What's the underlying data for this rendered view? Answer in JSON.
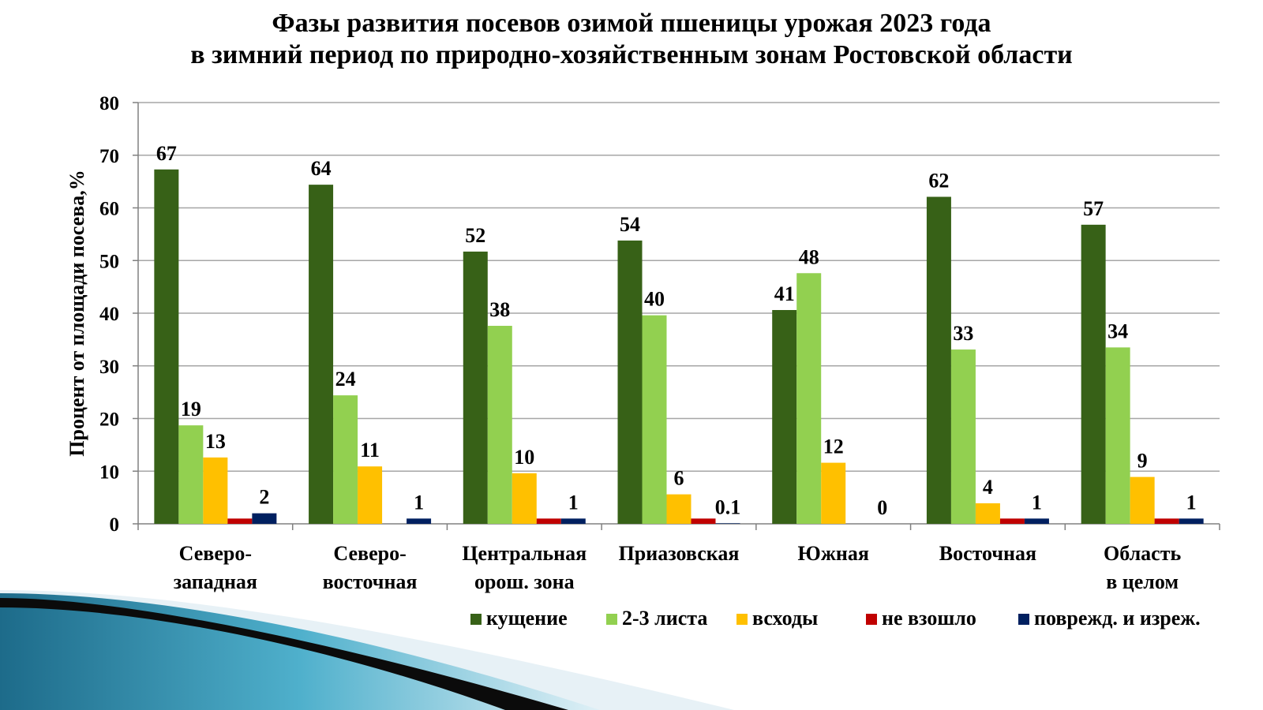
{
  "chart_data": {
    "type": "bar",
    "title_line1": "Фазы развития посевов озимой пшеницы урожая 2023 года",
    "title_line2": "в зимний период по природно-хозяйственным зонам Ростовской области",
    "ylabel": "Процент от площади посева,%",
    "xlabel": "",
    "ylim": [
      0,
      80
    ],
    "yticks": [
      0,
      10,
      20,
      30,
      40,
      50,
      60,
      70,
      80
    ],
    "grid": true,
    "legend_position": "bottom-right",
    "categories": [
      [
        "Северо-",
        "западная"
      ],
      [
        "Северо-",
        "восточная"
      ],
      [
        "Центральная",
        "орош. зона"
      ],
      [
        "Приазовская"
      ],
      [
        "Южная"
      ],
      [
        "Восточная"
      ],
      [
        "Область",
        "в целом"
      ]
    ],
    "series": [
      {
        "name": "кущение",
        "color": "#376117",
        "values": [
          67.3,
          64.4,
          51.7,
          53.8,
          40.6,
          62.1,
          56.8
        ],
        "labels": [
          "67",
          "64",
          "52",
          "54",
          "41",
          "62",
          "57"
        ]
      },
      {
        "name": "2-3 листа",
        "color": "#92d050",
        "values": [
          18.7,
          24.4,
          37.6,
          39.6,
          47.6,
          33.1,
          33.5
        ],
        "labels": [
          "19",
          "24",
          "38",
          "40",
          "48",
          "33",
          "34"
        ]
      },
      {
        "name": "всходы",
        "color": "#ffc000",
        "values": [
          12.6,
          10.9,
          9.6,
          5.6,
          11.6,
          3.9,
          8.9
        ],
        "labels": [
          "13",
          "11",
          "10",
          "6",
          "12",
          "4",
          "9"
        ]
      },
      {
        "name": "не взошло",
        "color": "#c00000",
        "values": [
          1.0,
          0,
          1.0,
          1.0,
          0,
          1.0,
          1.0
        ],
        "labels": [
          "",
          "",
          "",
          "",
          "",
          "",
          ""
        ]
      },
      {
        "name": "поврежд. и изреж.",
        "color": "#002060",
        "values": [
          2.0,
          1.0,
          1.0,
          0.1,
          0,
          1.0,
          1.0
        ],
        "labels": [
          "2",
          "1",
          "1",
          "0.1",
          "0",
          "1",
          "1"
        ]
      }
    ]
  }
}
